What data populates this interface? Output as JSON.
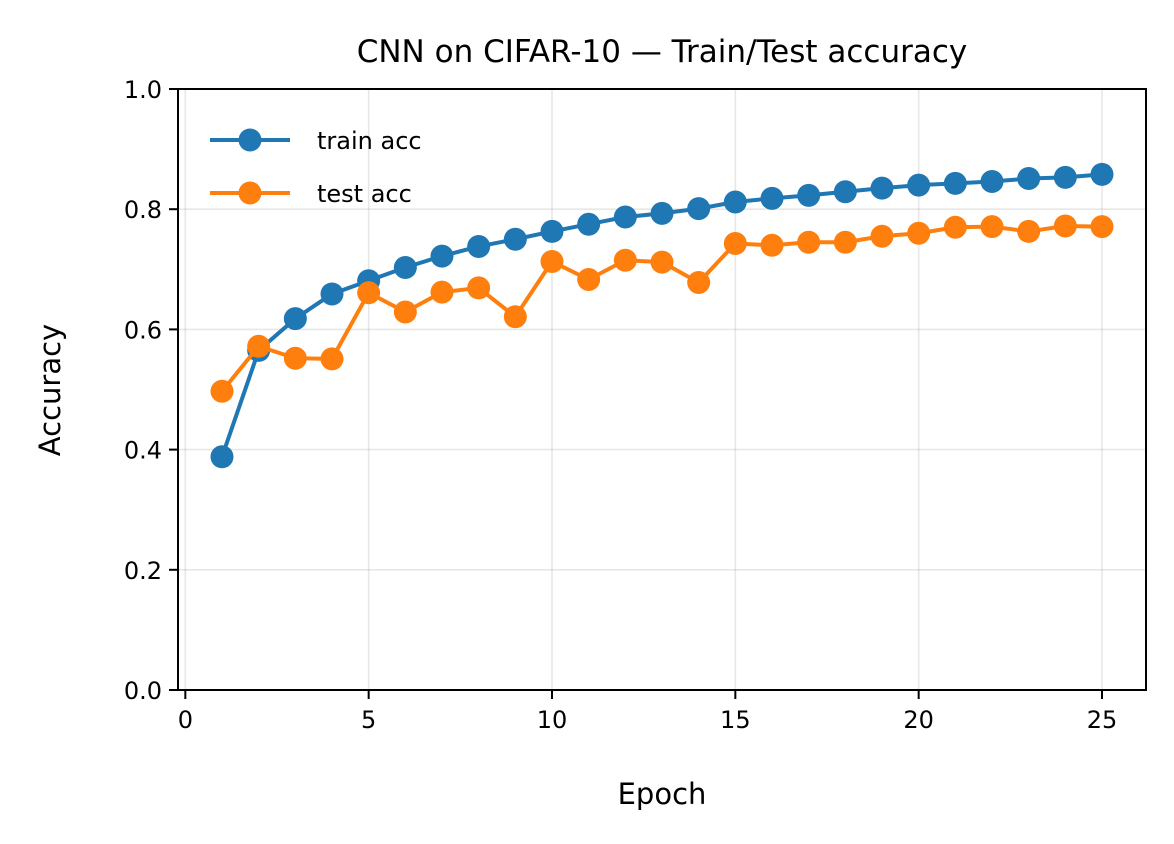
{
  "chart_data": {
    "type": "line",
    "title": "CNN on CIFAR-10 — Train/Test accuracy",
    "xlabel": "Epoch",
    "ylabel": "Accuracy",
    "xlim": [
      -0.2,
      26.2
    ],
    "ylim": [
      0.0,
      1.0
    ],
    "xticks": [
      0,
      5,
      10,
      15,
      20,
      25
    ],
    "yticks": [
      0.0,
      0.2,
      0.4,
      0.6,
      0.8,
      1.0
    ],
    "xtick_labels": [
      "0",
      "5",
      "10",
      "15",
      "20",
      "25"
    ],
    "ytick_labels": [
      "0.0",
      "0.2",
      "0.4",
      "0.6",
      "0.8",
      "1.0"
    ],
    "grid": true,
    "legend_position": "upper-left",
    "x": [
      1,
      2,
      3,
      4,
      5,
      6,
      7,
      8,
      9,
      10,
      11,
      12,
      13,
      14,
      15,
      16,
      17,
      18,
      19,
      20,
      21,
      22,
      23,
      24,
      25
    ],
    "series": [
      {
        "name": "train acc",
        "color": "#1f77b4",
        "marker": "circle",
        "values": [
          0.388,
          0.565,
          0.618,
          0.659,
          0.681,
          0.703,
          0.722,
          0.738,
          0.75,
          0.763,
          0.775,
          0.787,
          0.793,
          0.801,
          0.812,
          0.818,
          0.823,
          0.829,
          0.835,
          0.84,
          0.843,
          0.846,
          0.851,
          0.853,
          0.858
        ]
      },
      {
        "name": "test acc",
        "color": "#ff7f0e",
        "marker": "circle",
        "values": [
          0.497,
          0.572,
          0.552,
          0.551,
          0.661,
          0.629,
          0.662,
          0.669,
          0.621,
          0.713,
          0.683,
          0.715,
          0.712,
          0.678,
          0.743,
          0.74,
          0.745,
          0.745,
          0.755,
          0.76,
          0.77,
          0.771,
          0.763,
          0.772,
          0.771
        ]
      }
    ]
  }
}
